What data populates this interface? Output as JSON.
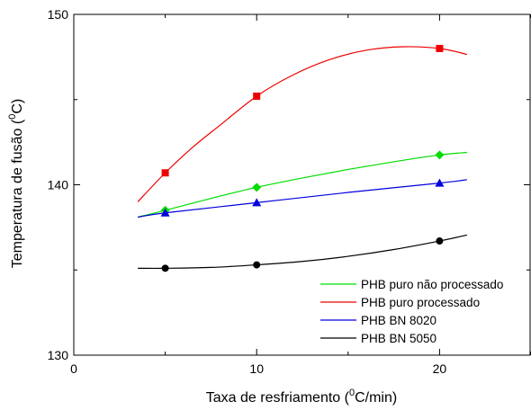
{
  "chart_data": {
    "type": "line",
    "xlabel_main": "Taxa de resfriamento (",
    "xlabel_sup": "0",
    "xlabel_tail": "C/min)",
    "ylabel_main": "Temperatura de fusão (",
    "ylabel_sup": "0",
    "ylabel_tail": "C)",
    "xlim": [
      0,
      25
    ],
    "ylim": [
      130,
      150
    ],
    "xticks": [
      0,
      10,
      20
    ],
    "xtick_labels": [
      "0",
      "10",
      "20"
    ],
    "yticks": [
      130,
      140,
      150
    ],
    "ytick_labels": [
      "130",
      "140",
      "150"
    ],
    "grid": false,
    "legend_position": "bottom-right",
    "series": [
      {
        "name": "PHB puro não processado",
        "color": "#00dd00",
        "marker": "diamond",
        "points": [
          [
            5,
            138.5
          ],
          [
            10,
            139.85
          ],
          [
            20,
            141.75
          ]
        ],
        "fit": [
          [
            3.5,
            138.1
          ],
          [
            5,
            138.5
          ],
          [
            7.5,
            139.2
          ],
          [
            10,
            139.85
          ],
          [
            12.5,
            140.4
          ],
          [
            15,
            140.9
          ],
          [
            17.5,
            141.35
          ],
          [
            20,
            141.75
          ],
          [
            21.5,
            141.9
          ]
        ]
      },
      {
        "name": "PHB puro processado",
        "color": "#ee0000",
        "marker": "square",
        "points": [
          [
            5,
            140.7
          ],
          [
            10,
            145.2
          ],
          [
            20,
            148.0
          ]
        ],
        "fit": [
          [
            3.5,
            139.0
          ],
          [
            5,
            140.7
          ],
          [
            6.5,
            142.2
          ],
          [
            8,
            143.5
          ],
          [
            10,
            145.2
          ],
          [
            12,
            146.45
          ],
          [
            14,
            147.35
          ],
          [
            16,
            147.9
          ],
          [
            18,
            148.1
          ],
          [
            20,
            148.0
          ],
          [
            21.5,
            147.65
          ]
        ]
      },
      {
        "name": "PHB BN 8020",
        "color": "#0000dd",
        "marker": "triangle",
        "points": [
          [
            5,
            138.35
          ],
          [
            10,
            138.95
          ],
          [
            20,
            140.1
          ]
        ],
        "fit": [
          [
            3.5,
            138.1
          ],
          [
            5,
            138.35
          ],
          [
            10,
            138.95
          ],
          [
            15,
            139.55
          ],
          [
            20,
            140.1
          ],
          [
            21.5,
            140.3
          ]
        ]
      },
      {
        "name": "PHB BN 5050",
        "color": "#000000",
        "marker": "circle",
        "points": [
          [
            5,
            135.1
          ],
          [
            10,
            135.3
          ],
          [
            20,
            136.7
          ]
        ],
        "fit": [
          [
            3.5,
            135.1
          ],
          [
            5,
            135.1
          ],
          [
            7.5,
            135.15
          ],
          [
            10,
            135.3
          ],
          [
            12.5,
            135.5
          ],
          [
            15,
            135.8
          ],
          [
            17.5,
            136.2
          ],
          [
            20,
            136.7
          ],
          [
            21.5,
            137.05
          ]
        ]
      }
    ]
  }
}
